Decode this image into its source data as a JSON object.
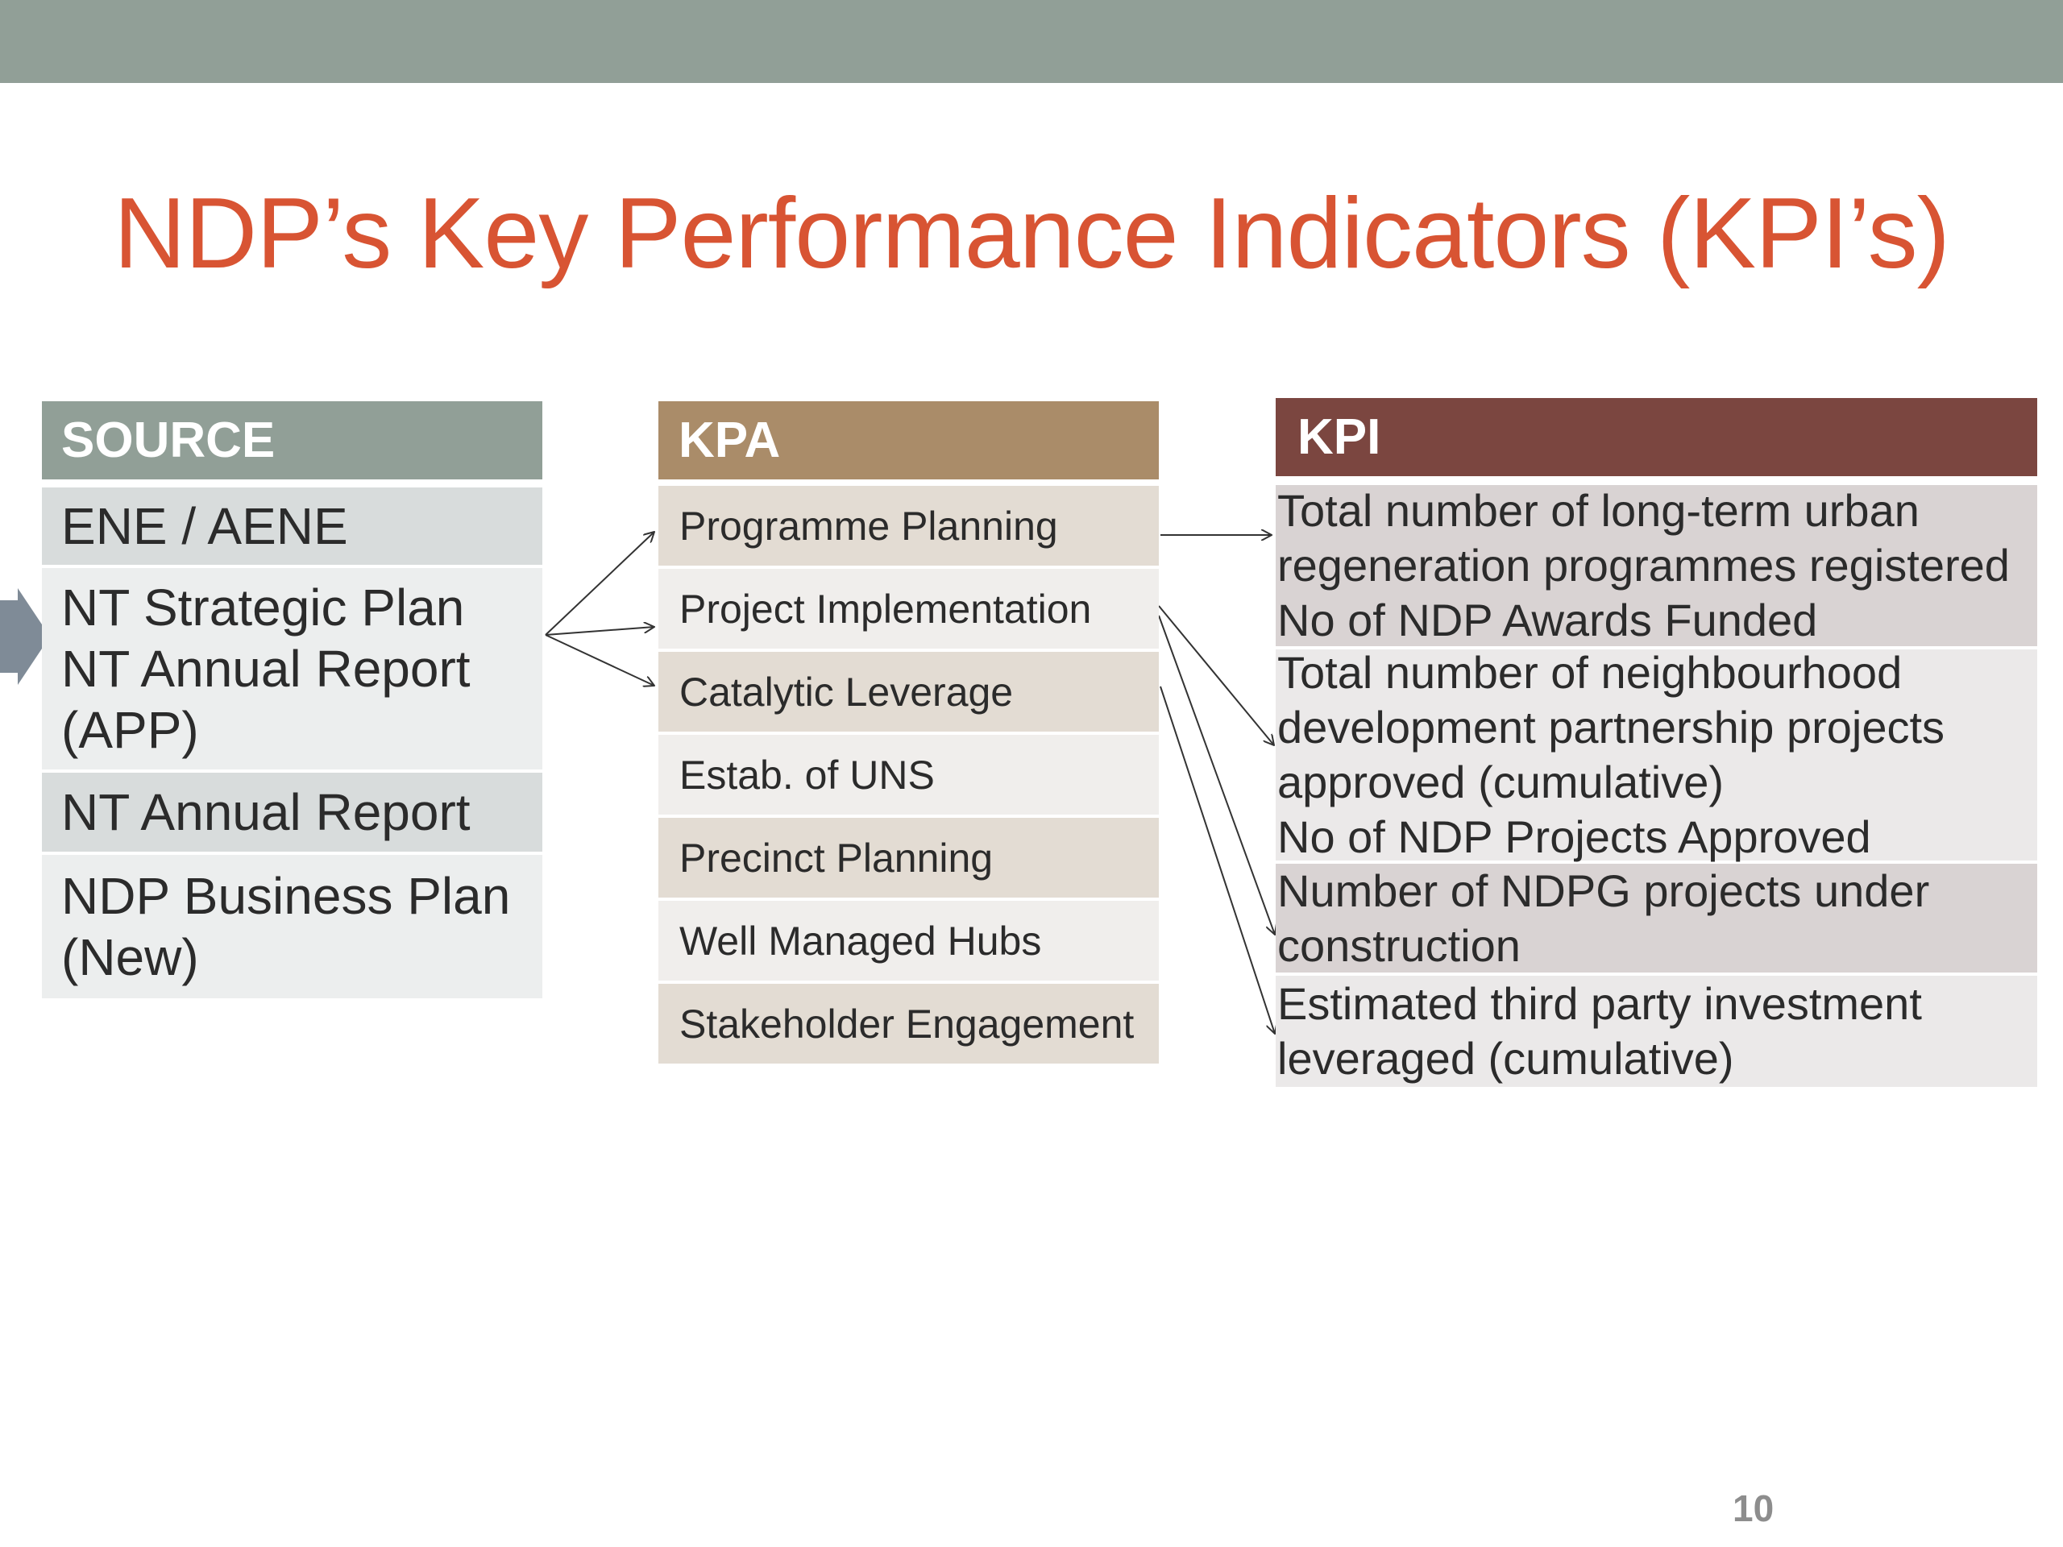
{
  "slide": {
    "title": "NDP’s Key Performance Indicators (KPI’s)",
    "page_number": "10"
  },
  "colors": {
    "top_bar": "#919f97",
    "title": "#d85433",
    "source_header": "#919f97",
    "kpa_header": "#aa8c69",
    "kpi_header": "#7b4640"
  },
  "source": {
    "header": "SOURCE",
    "items": [
      {
        "label": "ENE / AENE"
      },
      {
        "label": "NT Strategic Plan\nNT Annual Report\n(APP)"
      },
      {
        "label": "NT Annual Report"
      },
      {
        "label": "NDP Business Plan\n(New)"
      }
    ]
  },
  "kpa": {
    "header": "KPA",
    "items": [
      {
        "label": "Programme Planning"
      },
      {
        "label": "Project Implementation"
      },
      {
        "label": "Catalytic Leverage"
      },
      {
        "label": "Estab. of UNS"
      },
      {
        "label": "Precinct Planning"
      },
      {
        "label": "Well Managed Hubs"
      },
      {
        "label": "Stakeholder Engagement"
      }
    ]
  },
  "kpi": {
    "header": "KPI",
    "items": [
      {
        "label": "Total number of long-term urban\nregeneration programmes registered\nNo of NDP Awards Funded"
      },
      {
        "label": "Total number of neighbourhood\ndevelopment partnership projects\napproved (cumulative)\nNo of NDP Projects Approved"
      },
      {
        "label": "Number of NDPG projects under\nconstruction"
      },
      {
        "label": "Estimated third party investment\nleveraged (cumulative)"
      }
    ]
  }
}
